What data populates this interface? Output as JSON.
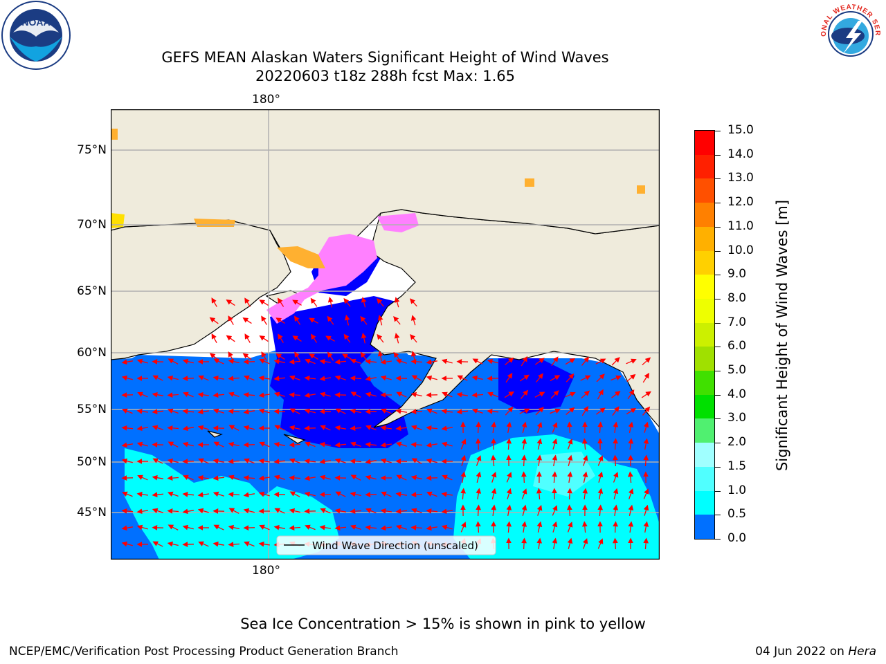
{
  "title": {
    "line1": "GEFS MEAN Alaskan Waters Significant Height of Wind Waves",
    "line2": "20220603 t18z 288h fcst   Max: 1.65"
  },
  "map": {
    "lon_label": "180°",
    "lat_labels": [
      "75°N",
      "70°N",
      "65°N",
      "60°N",
      "55°N",
      "50°N",
      "45°N"
    ],
    "legend": "Wind Wave Direction (unscaled)",
    "colors": {
      "land": "#efebdc",
      "coast": "#000000",
      "grid": "#b0b0b0",
      "arrow": "#ff0000",
      "ice_pink": "#ff80ff",
      "ice_orange": "#ffb030",
      "ice_yellow": "#ffe000"
    }
  },
  "colorbar": {
    "title": "Significant Height of Wind Waves [m]",
    "tick_labels": [
      "15.0",
      "14.0",
      "13.0",
      "12.0",
      "11.0",
      "10.0",
      "9.0",
      "8.0",
      "7.0",
      "6.0",
      "5.0",
      "4.0",
      "3.0",
      "2.0",
      "1.5",
      "1.0",
      "0.5",
      "0.0"
    ],
    "colors": [
      "#0000ff",
      "#0070ff",
      "#00ffff",
      "#50ffff",
      "#a0ffff",
      "#50f070",
      "#00e000",
      "#40e000",
      "#a0e000",
      "#ccf000",
      "#eeff00",
      "#ffff00",
      "#ffd000",
      "#ffb000",
      "#ff8000",
      "#ff5000",
      "#ff2000",
      "#ff0000"
    ]
  },
  "caption": "Sea Ice Concentration > 15% is shown in pink to yellow",
  "footer": {
    "left": "NCEP/EMC/Verification Post Processing Product Generation Branch",
    "right_prefix": "04 Jun 2022 on ",
    "right_host": "Hera"
  },
  "logos": {
    "noaa": "NOAA",
    "nws": "NATIONAL WEATHER SERVICE"
  }
}
